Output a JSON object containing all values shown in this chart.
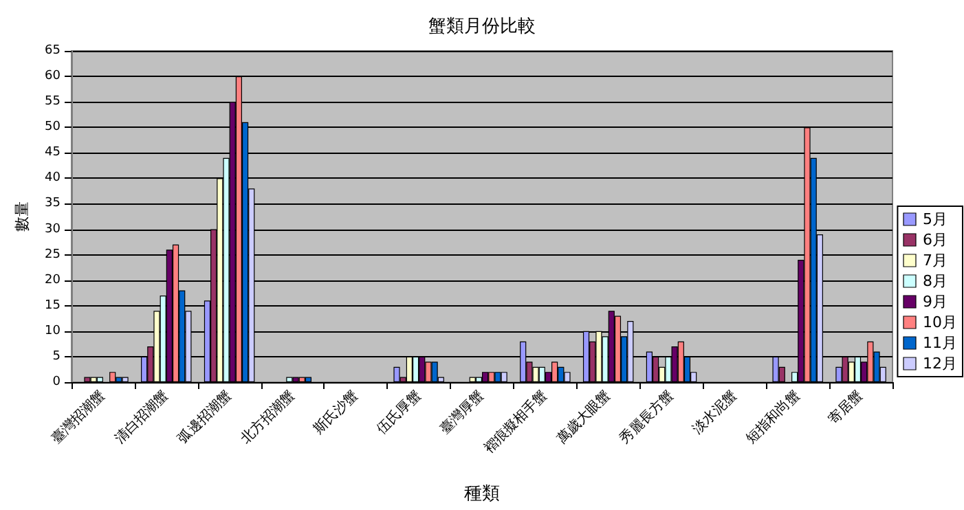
{
  "chart_data": {
    "type": "bar",
    "title": "蟹類月份比較",
    "xlabel": "種類",
    "ylabel": "數量",
    "categories": [
      "臺灣招潮蟹",
      "清白招潮蟹",
      "弧邊招潮蟹",
      "北方招潮蟹",
      "斯氏沙蟹",
      "伍氏厚蟹",
      "臺灣厚蟹",
      "褶痕擬相手蟹",
      "萬歲大眼蟹",
      "秀麗長方蟹",
      "淡水泥蟹",
      "短指和尚蟹",
      "寄居蟹"
    ],
    "series": [
      {
        "name": "5月",
        "color": "#9999ff",
        "values": [
          0,
          5,
          16,
          0,
          0,
          3,
          0,
          8,
          10,
          6,
          0,
          5,
          3
        ]
      },
      {
        "name": "6月",
        "color": "#993366",
        "values": [
          1,
          7,
          30,
          0,
          0,
          1,
          0,
          4,
          8,
          5,
          0,
          3,
          5
        ]
      },
      {
        "name": "7月",
        "color": "#ffffcc",
        "values": [
          1,
          14,
          40,
          0,
          0,
          5,
          1,
          3,
          10,
          3,
          0,
          0,
          4
        ]
      },
      {
        "name": "8月",
        "color": "#ccffff",
        "values": [
          1,
          17,
          44,
          1,
          0,
          5,
          1,
          3,
          9,
          5,
          0,
          2,
          5
        ]
      },
      {
        "name": "9月",
        "color": "#660066",
        "values": [
          0,
          26,
          55,
          1,
          0,
          5,
          2,
          2,
          14,
          7,
          0,
          24,
          4
        ]
      },
      {
        "name": "10月",
        "color": "#ff8080",
        "values": [
          2,
          27,
          60,
          1,
          0,
          4,
          2,
          4,
          13,
          8,
          0,
          50,
          8
        ]
      },
      {
        "name": "11月",
        "color": "#0066cc",
        "values": [
          1,
          18,
          51,
          1,
          0,
          4,
          2,
          3,
          9,
          5,
          0,
          44,
          6
        ]
      },
      {
        "name": "12月",
        "color": "#ccccff",
        "values": [
          1,
          14,
          38,
          0,
          0,
          1,
          2,
          2,
          12,
          2,
          0,
          29,
          3
        ]
      }
    ],
    "ylim": [
      0,
      65
    ],
    "yticks": [
      0,
      5,
      10,
      15,
      20,
      25,
      30,
      35,
      40,
      45,
      50,
      55,
      60,
      65
    ],
    "grid": "y",
    "legend": "right"
  }
}
